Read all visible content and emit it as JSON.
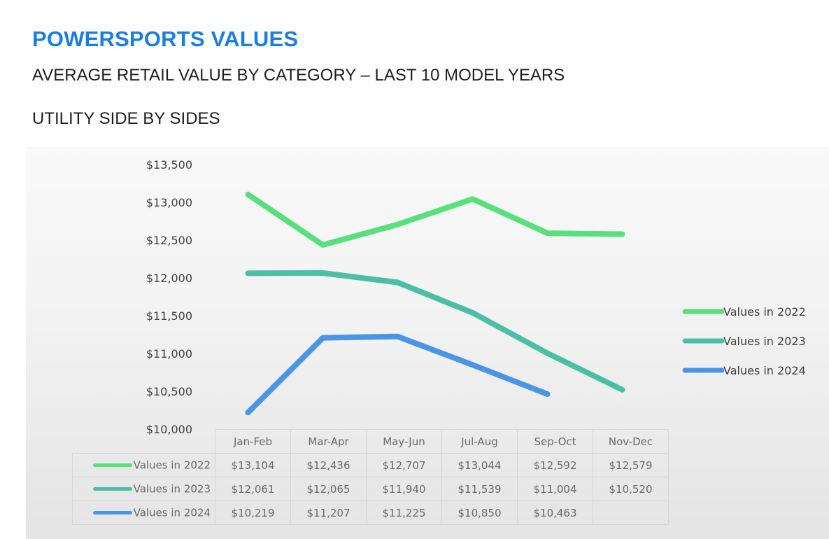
{
  "header": {
    "title": "POWERSPORTS VALUES",
    "subtitle": "AVERAGE RETAIL VALUE BY CATEGORY – LAST 10 MODEL YEARS",
    "section": "UTILITY SIDE BY SIDES"
  },
  "colors": {
    "title": "#1a7fe0",
    "series_2022": "#57e07d",
    "series_2023": "#4bbfa4",
    "series_2024": "#4a96e6"
  },
  "chart_data": {
    "type": "line",
    "categories": [
      "Jan-Feb",
      "Mar-Apr",
      "May-Jun",
      "Jul-Aug",
      "Sep-Oct",
      "Nov-Dec"
    ],
    "series": [
      {
        "name": "Values in 2022",
        "values": [
          13104,
          12436,
          12707,
          13044,
          12592,
          12579
        ],
        "labels": [
          "$13,104",
          "$12,436",
          "$12,707",
          "$13,044",
          "$12,592",
          "$12,579"
        ]
      },
      {
        "name": "Values in 2023",
        "values": [
          12061,
          12065,
          11940,
          11539,
          11004,
          10520
        ],
        "labels": [
          "$12,061",
          "$12,065",
          "$11,940",
          "$11,539",
          "$11,004",
          "$10,520"
        ]
      },
      {
        "name": "Values in 2024",
        "values": [
          10219,
          11207,
          11225,
          10850,
          10463,
          null
        ],
        "labels": [
          "$10,219",
          "$11,207",
          "$11,225",
          "$10,850",
          "$10,463",
          ""
        ]
      }
    ],
    "y_ticks": [
      "$10,000",
      "$10,500",
      "$11,000",
      "$11,500",
      "$12,000",
      "$12,500",
      "$13,000",
      "$13,500"
    ],
    "ylim": [
      10000,
      13500
    ],
    "grid": false,
    "legend_position": "right",
    "data_table": true
  }
}
